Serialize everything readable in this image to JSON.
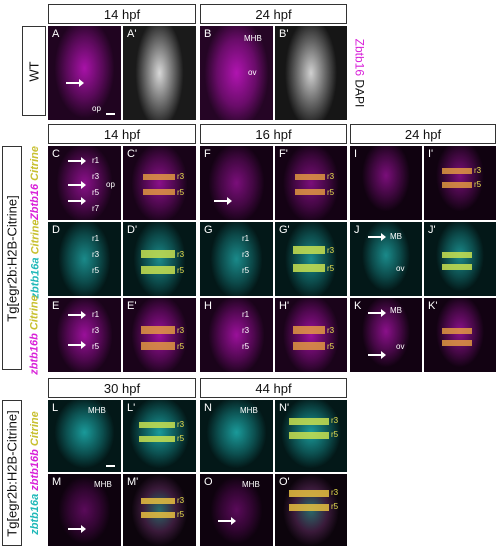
{
  "headers": {
    "top_left": "14 hpf",
    "top_right": "24 hpf",
    "mid_1": "14 hpf",
    "mid_2": "16 hpf",
    "mid_3": "24 hpf",
    "bot_1": "30 hpf",
    "bot_2": "44 hpf"
  },
  "side_labels": {
    "wt": "WT",
    "tg1": "Tg[egr2b:H2B-Citrine]",
    "tg2": "Tg[egr2b:H2B-Citrine]",
    "zbtb16_dapi_a": "Zbtb16",
    "zbtb16_dapi_b": "DAPI"
  },
  "row_labels": {
    "zbtb16": "Zbtb16",
    "zbtb16a": "zbtb16a",
    "zbtb16b": "zbtb16b",
    "citrine": "Citrine"
  },
  "panels": {
    "A": "A",
    "A1": "A'",
    "B": "B",
    "B1": "B'",
    "C": "C",
    "C1": "C'",
    "F": "F",
    "F1": "F'",
    "I": "I",
    "I1": "I'",
    "D": "D",
    "D1": "D'",
    "G": "G",
    "G1": "G'",
    "J": "J",
    "J1": "J'",
    "E": "E",
    "E1": "E'",
    "H": "H",
    "H1": "H'",
    "K": "K",
    "K1": "K'",
    "L": "L",
    "L1": "L'",
    "N": "N",
    "N1": "N'",
    "M": "M",
    "M1": "M'",
    "O": "O",
    "O1": "O'"
  },
  "annotations": {
    "op": "op",
    "mhb": "MHB",
    "ov": "ov",
    "mb": "MB",
    "r1": "r1",
    "r3": "r3",
    "r5": "r5",
    "r7": "r7"
  },
  "colors": {
    "magenta": "#d81fd8",
    "cyan": "#1fb8b8",
    "yellow": "#e8e050",
    "white": "#ffffff"
  }
}
